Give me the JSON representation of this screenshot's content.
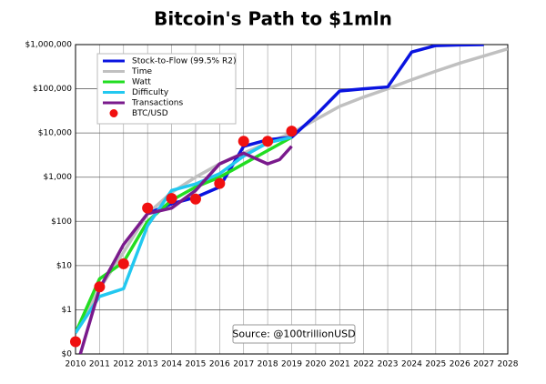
{
  "chart_data": {
    "type": "line",
    "title": "Bitcoin's Path to $1mln",
    "annotation": "Source: @100trillionUSD",
    "log_y": true,
    "grid": true,
    "legend": "upper left",
    "xlim": [
      2010,
      2028
    ],
    "xticks": [
      2010,
      2011,
      2012,
      2013,
      2014,
      2015,
      2016,
      2017,
      2018,
      2019,
      2020,
      2021,
      2022,
      2023,
      2024,
      2025,
      2026,
      2027,
      2028
    ],
    "ylim": [
      0.1,
      1000000
    ],
    "yticks": [
      {
        "value": 0.1,
        "label": "$0"
      },
      {
        "value": 1,
        "label": "$1"
      },
      {
        "value": 10,
        "label": "$10"
      },
      {
        "value": 100,
        "label": "$100"
      },
      {
        "value": 1000,
        "label": "$1,000"
      },
      {
        "value": 10000,
        "label": "$10,000"
      },
      {
        "value": 100000,
        "label": "$100,000"
      },
      {
        "value": 1000000,
        "label": "$1,000,000"
      }
    ],
    "series": [
      {
        "name": "Stock-to-Flow (99.5% R2)",
        "color": "#0a14e0",
        "style": "line",
        "x": [
          2013,
          2014,
          2015,
          2016,
          2017,
          2018,
          2019,
          2020,
          2021,
          2022,
          2023,
          2024,
          2025,
          2026,
          2027
        ],
        "values": [
          150,
          250,
          350,
          600,
          5000,
          7000,
          8000,
          25000,
          89000,
          100000,
          110000,
          680000,
          950000,
          980000,
          1000000
        ]
      },
      {
        "name": "Time",
        "color": "#c0c0c0",
        "style": "line",
        "x": [
          2010,
          2011,
          2012,
          2013,
          2014,
          2015,
          2016,
          2017,
          2018,
          2019,
          2020,
          2021,
          2022,
          2023,
          2024,
          2025,
          2026,
          2027,
          2028
        ],
        "values": [
          0.3,
          3,
          20,
          150,
          450,
          1000,
          2000,
          3500,
          6000,
          10000,
          20000,
          40000,
          65000,
          100000,
          160000,
          250000,
          380000,
          550000,
          800000
        ]
      },
      {
        "name": "Watt",
        "color": "#22dd22",
        "style": "line",
        "x": [
          2010,
          2011,
          2012,
          2013,
          2014,
          2015,
          2016,
          2017,
          2018,
          2019
        ],
        "values": [
          0.3,
          5,
          12,
          100,
          300,
          600,
          1000,
          2000,
          4000,
          8000
        ]
      },
      {
        "name": "Difficulty",
        "color": "#22c8f0",
        "style": "line",
        "x": [
          2010,
          2011,
          2012,
          2013,
          2014,
          2015,
          2016,
          2017,
          2018,
          2019
        ],
        "values": [
          0.3,
          2,
          3,
          80,
          500,
          700,
          1200,
          3000,
          6000,
          8000
        ]
      },
      {
        "name": "Transactions",
        "color": "#7a1a8c",
        "style": "line",
        "x": [
          2010.2,
          2011,
          2012,
          2013,
          2014,
          2015,
          2016,
          2017,
          2018,
          2018.5,
          2019
        ],
        "values": [
          0.1,
          3,
          30,
          150,
          200,
          500,
          2000,
          3500,
          2000,
          2500,
          5000
        ]
      },
      {
        "name": "BTC/USD",
        "color": "#f01010",
        "style": "markers",
        "x": [
          2010,
          2011,
          2012,
          2013,
          2014,
          2015,
          2016,
          2017,
          2018,
          2019
        ],
        "values": [
          0.19,
          3.3,
          11,
          200,
          330,
          320,
          720,
          6500,
          6500,
          11000
        ]
      }
    ]
  }
}
